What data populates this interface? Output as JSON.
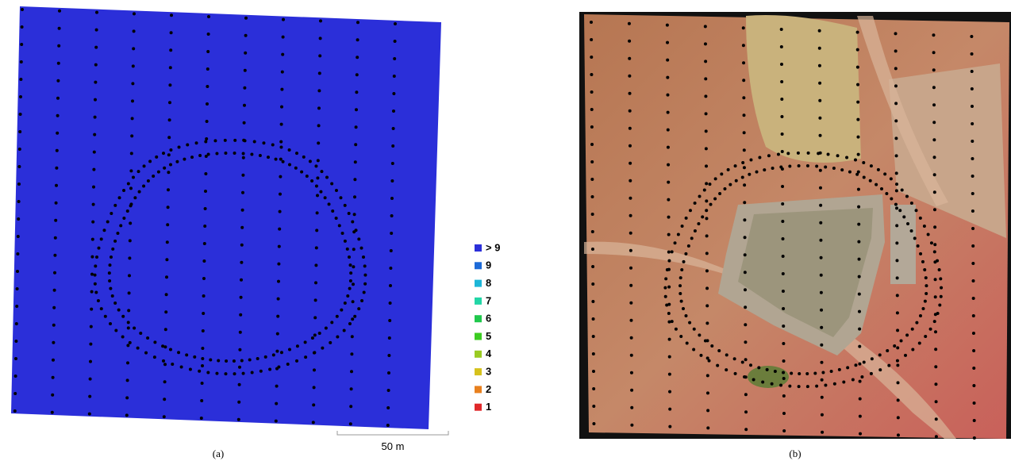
{
  "legend": {
    "items": [
      {
        "label": "> 9",
        "color": "#2b2fd9"
      },
      {
        "label": "9",
        "color": "#1c6ad8"
      },
      {
        "label": "8",
        "color": "#1cb6d8"
      },
      {
        "label": "7",
        "color": "#22d6a6"
      },
      {
        "label": "6",
        "color": "#20c84c"
      },
      {
        "label": "5",
        "color": "#3ccc22"
      },
      {
        "label": "4",
        "color": "#9acb22"
      },
      {
        "label": "3",
        "color": "#d6c21c"
      },
      {
        "label": "2",
        "color": "#e8801e"
      },
      {
        "label": "1",
        "color": "#e0282a"
      }
    ]
  },
  "scale_bar": {
    "label": "50 m"
  },
  "captions": {
    "a": "(a)",
    "b": "(b)"
  }
}
